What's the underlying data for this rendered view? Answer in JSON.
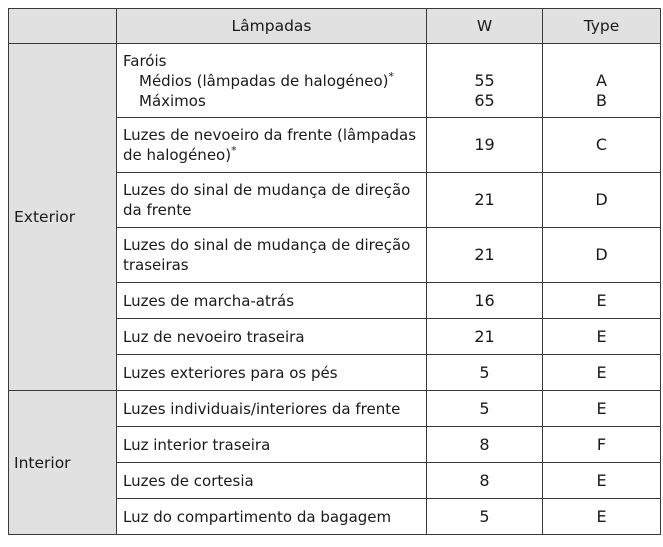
{
  "header": {
    "group": "",
    "lamp": "Lâmpadas",
    "watt": "W",
    "type": "Type"
  },
  "groups": {
    "exterior": "Exterior",
    "interior": "Interior"
  },
  "rows": [
    {
      "lamp_title": "Faróis",
      "sub1": "Médios (lâmpadas de halogéneo)",
      "sub1_mark": "*",
      "sub2": "Máximos",
      "w1": "55",
      "w2": "65",
      "t1": "A",
      "t2": "B"
    },
    {
      "lamp_line1": "Luzes de nevoeiro da frente (lâmpadas",
      "lamp_line2": "de halogéneo)",
      "mark": "*",
      "w": "19",
      "t": "C"
    },
    {
      "lamp_line1": "Luzes do sinal de mudança de direção",
      "lamp_line2": "da frente",
      "w": "21",
      "t": "D"
    },
    {
      "lamp_line1": "Luzes do sinal de mudança de direção",
      "lamp_line2": "traseiras",
      "w": "21",
      "t": "D"
    },
    {
      "lamp": "Luzes de marcha-atrás",
      "w": "16",
      "t": "E"
    },
    {
      "lamp": "Luz de nevoeiro traseira",
      "w": "21",
      "t": "E"
    },
    {
      "lamp": "Luzes exteriores para os pés",
      "w": "5",
      "t": "E"
    },
    {
      "lamp": "Luzes individuais/interiores da frente",
      "w": "5",
      "t": "E"
    },
    {
      "lamp": "Luz interior traseira",
      "w": "8",
      "t": "F"
    },
    {
      "lamp": "Luzes de cortesia",
      "w": "8",
      "t": "E"
    },
    {
      "lamp": "Luz do compartimento da bagagem",
      "w": "5",
      "t": "E"
    }
  ]
}
